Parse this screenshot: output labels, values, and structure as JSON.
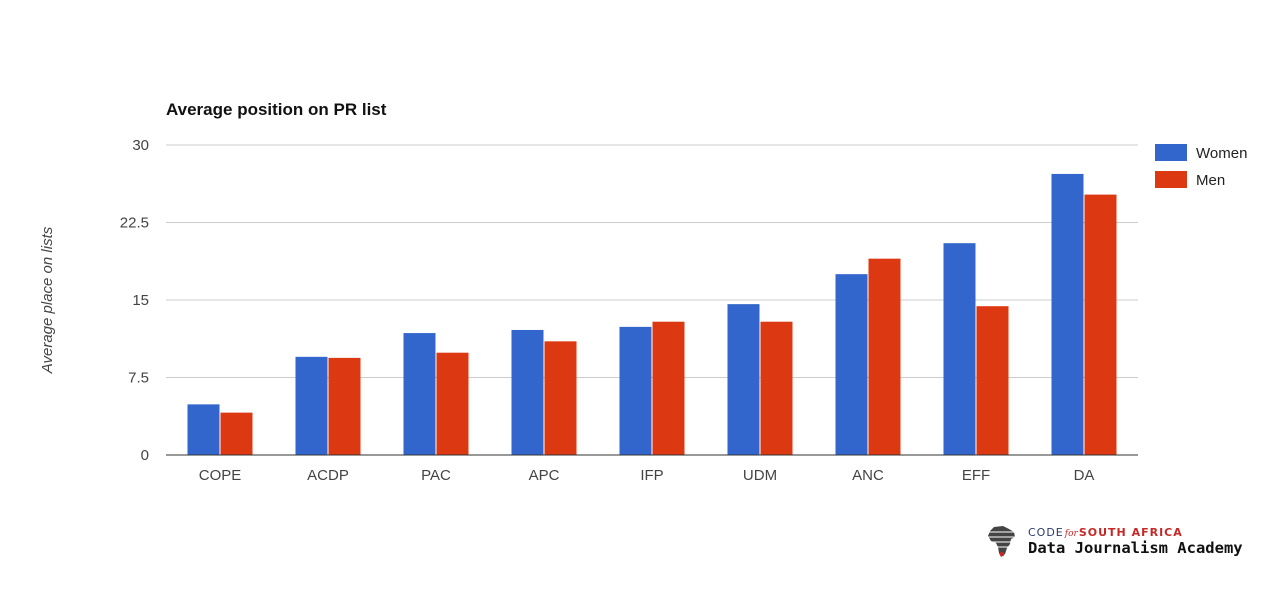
{
  "chart_data": {
    "type": "bar",
    "title": "Average position on PR list",
    "xlabel": "",
    "ylabel": "Average place on lists",
    "ylim": [
      0,
      30
    ],
    "yticks": [
      "0",
      "7.5",
      "15",
      "22.5",
      "30"
    ],
    "ytick_values": [
      0,
      7.5,
      15,
      22.5,
      30
    ],
    "grid": true,
    "legend_position": "right",
    "categories": [
      "COPE",
      "ACDP",
      "PAC",
      "APC",
      "IFP",
      "UDM",
      "ANC",
      "EFF",
      "DA"
    ],
    "series": [
      {
        "name": "Women",
        "color": "#3366cc",
        "values": [
          4.9,
          9.5,
          11.8,
          12.1,
          12.4,
          14.6,
          17.5,
          20.5,
          27.2
        ]
      },
      {
        "name": "Men",
        "color": "#dc3912",
        "values": [
          4.1,
          9.4,
          9.9,
          11.0,
          12.9,
          12.9,
          19.0,
          14.4,
          25.2
        ]
      }
    ]
  },
  "logo": {
    "top_left": "CODE",
    "top_sep": "for",
    "top_right": "SOUTH AFRICA",
    "bottom": "Data Journalism Academy",
    "icon": "africa-map-icon"
  }
}
